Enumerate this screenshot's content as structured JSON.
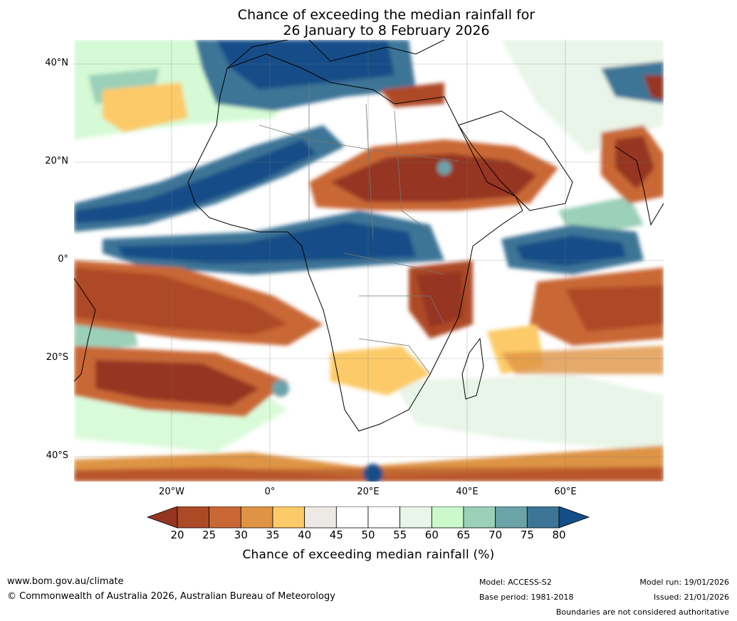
{
  "title": {
    "line1": "Chance of exceeding the median rainfall for",
    "line2": "26 January to 8 February 2026"
  },
  "map": {
    "region": "Africa and surrounding oceans",
    "lat_labels": [
      "40°N",
      "20°N",
      "0°",
      "20°S",
      "40°S"
    ],
    "lon_labels": [
      "20°W",
      "0°",
      "20°E",
      "40°E",
      "60°E"
    ]
  },
  "colorbar": {
    "ticks": [
      "20",
      "25",
      "30",
      "35",
      "40",
      "45",
      "50",
      "55",
      "60",
      "65",
      "70",
      "75",
      "80"
    ],
    "colors": [
      "#963622",
      "#ad4a26",
      "#c96835",
      "#de9444",
      "#fcca68",
      "#ede9e4",
      "#ffffff",
      "#ffffff",
      "#e9f5e8",
      "#cbf9cb",
      "#9bd0b9",
      "#6aa3a8",
      "#3d7596",
      "#144e88"
    ],
    "label": "Chance of exceeding median rainfall (%)"
  },
  "footer": {
    "website": "www.bom.gov.au/climate",
    "copyright": "© Commonwealth of Australia 2026, Australian Bureau of Meteorology",
    "model": "Model: ACCESS-S2",
    "base_period": "Base period: 1981-2018",
    "model_run": "Model run: 19/01/2026",
    "issued": "Issued: 21/01/2026",
    "disclaimer": "Boundaries are not considered authoritative"
  }
}
